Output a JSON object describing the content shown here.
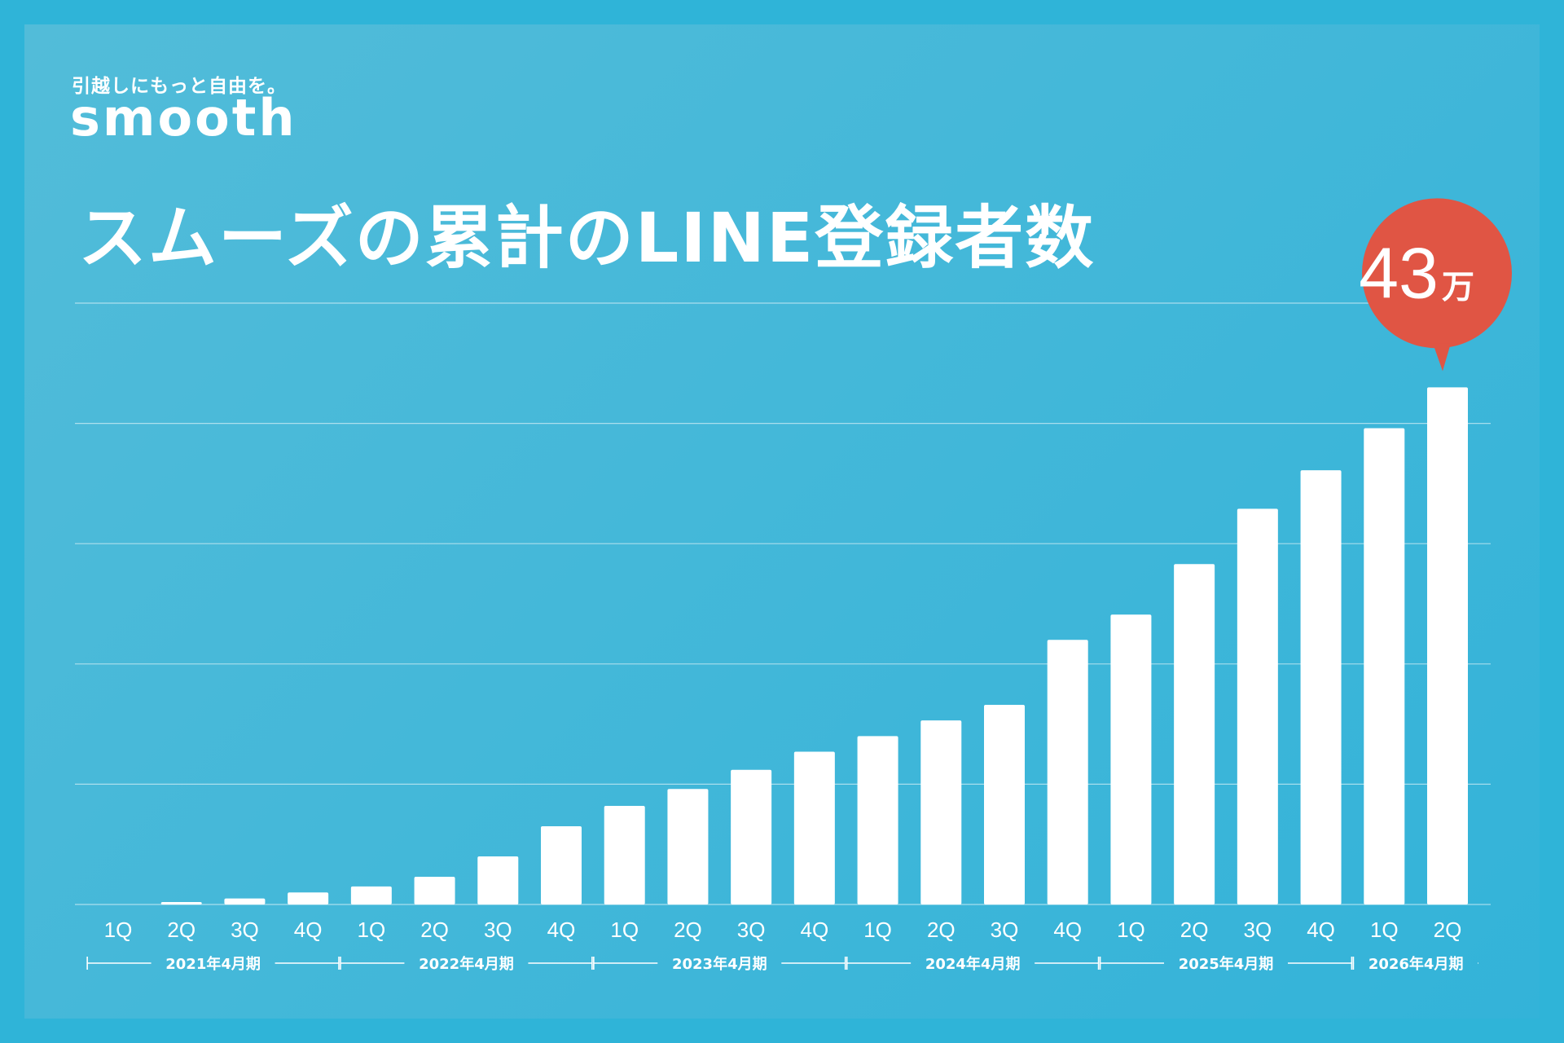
{
  "brand": {
    "tagline": "引越しにもっと自由を。",
    "name": "smooth"
  },
  "colors": {
    "background": "#41b7d9",
    "bar": "#ffffff",
    "callout": "#e05544"
  },
  "chart_data": {
    "type": "bar",
    "title": "スムーズの累計のLINE登録者数",
    "xlabel": "",
    "ylabel": "",
    "ylim": [
      0,
      50
    ],
    "grid": true,
    "categories": [
      "1Q",
      "2Q",
      "3Q",
      "4Q",
      "1Q",
      "2Q",
      "3Q",
      "4Q",
      "1Q",
      "2Q",
      "3Q",
      "4Q",
      "1Q",
      "2Q",
      "3Q",
      "4Q",
      "1Q",
      "2Q",
      "3Q",
      "4Q",
      "1Q",
      "2Q"
    ],
    "values": [
      0,
      0.2,
      0.5,
      1.0,
      1.5,
      2.3,
      4.0,
      6.5,
      8.2,
      9.6,
      11.2,
      12.7,
      14.0,
      15.3,
      16.6,
      22.0,
      24.1,
      28.3,
      32.9,
      36.1,
      39.6,
      43
    ],
    "periods": [
      {
        "label": "2021年4月期",
        "start": 0,
        "end": 3
      },
      {
        "label": "2022年4月期",
        "start": 4,
        "end": 7
      },
      {
        "label": "2023年4月期",
        "start": 8,
        "end": 11
      },
      {
        "label": "2024年4月期",
        "start": 12,
        "end": 15
      },
      {
        "label": "2025年4月期",
        "start": 16,
        "end": 19
      },
      {
        "label": "2026年4月期",
        "start": 20,
        "end": 21
      }
    ],
    "callout": {
      "value": "43",
      "unit": "万",
      "index": 21
    }
  }
}
